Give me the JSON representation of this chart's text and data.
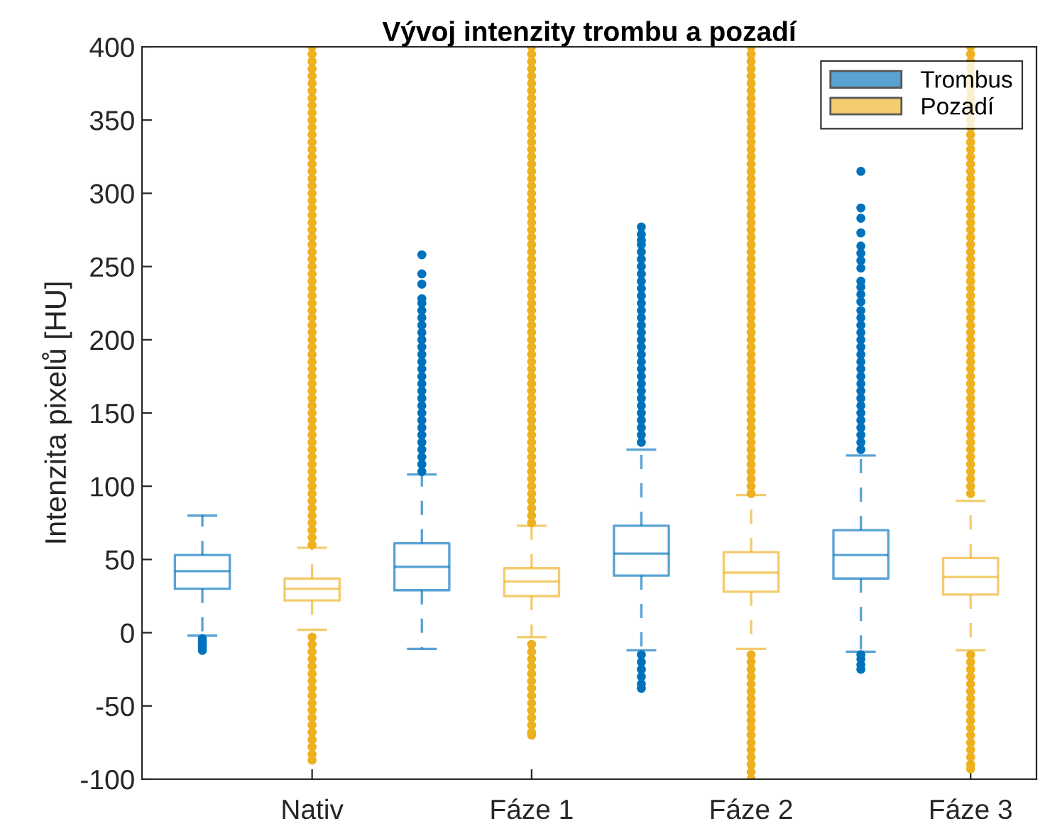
{
  "chart_data": {
    "type": "box",
    "title": "Vývoj intenzity trombu a pozadí",
    "ylabel": "Intenzita pixelů [HU]",
    "categories": [
      null,
      "Nativ",
      null,
      "Fáze 1",
      null,
      "Fáze 2",
      null,
      "Fáze 3"
    ],
    "ylim": [
      -100,
      400
    ],
    "yticks": [
      -100,
      -50,
      0,
      50,
      100,
      150,
      200,
      250,
      300,
      350,
      400
    ],
    "grid": false,
    "legend": "top right",
    "marker": "circle",
    "series": [
      {
        "name": "Trombus",
        "color": "#0072bd",
        "boxes": [
          {
            "low": -2,
            "q1": 30,
            "median": 42,
            "q3": 53,
            "high": 80,
            "outliers": [
              -4,
              -6,
              -8,
              -10,
              -12
            ]
          },
          null,
          {
            "low": -11,
            "q1": 29,
            "median": 45,
            "q3": 61,
            "high": 108,
            "outliers": [
              110,
              115,
              120,
              125,
              130,
              135,
              140,
              145,
              150,
              155,
              160,
              165,
              170,
              175,
              180,
              185,
              190,
              195,
              200,
              205,
              210,
              215,
              220,
              225,
              228,
              238,
              245,
              258
            ]
          },
          null,
          {
            "low": -12,
            "q1": 39,
            "median": 54,
            "q3": 73,
            "high": 125,
            "outliers": [
              130,
              135,
              140,
              145,
              150,
              155,
              160,
              165,
              170,
              175,
              180,
              185,
              190,
              195,
              200,
              205,
              210,
              215,
              220,
              225,
              230,
              235,
              240,
              245,
              250,
              255,
              260,
              265,
              268,
              272,
              277,
              -15,
              -20,
              -25,
              -30,
              -35,
              -38
            ]
          },
          null,
          {
            "low": -13,
            "q1": 37,
            "median": 53,
            "q3": 70,
            "high": 121,
            "outliers": [
              125,
              130,
              135,
              140,
              145,
              150,
              155,
              160,
              165,
              170,
              175,
              180,
              185,
              190,
              195,
              200,
              205,
              210,
              215,
              220,
              226,
              231,
              236,
              240,
              249,
              254,
              259,
              264,
              273,
              283,
              290,
              315,
              -15,
              -18,
              -22,
              -25
            ]
          },
          null
        ]
      },
      {
        "name": "Pozadí",
        "color": "#edb120",
        "boxes": [
          null,
          {
            "low": 2,
            "q1": 22,
            "median": 30,
            "q3": 37,
            "high": 58,
            "outliers": [
              60,
              65,
              70,
              75,
              80,
              85,
              90,
              95,
              100,
              105,
              110,
              115,
              120,
              125,
              130,
              135,
              140,
              145,
              150,
              155,
              160,
              165,
              170,
              175,
              180,
              185,
              190,
              195,
              200,
              205,
              210,
              215,
              220,
              225,
              230,
              235,
              240,
              245,
              250,
              255,
              260,
              265,
              270,
              275,
              280,
              285,
              290,
              295,
              300,
              305,
              310,
              315,
              320,
              325,
              330,
              335,
              340,
              345,
              350,
              355,
              360,
              365,
              370,
              375,
              380,
              385,
              390,
              395,
              400,
              -3,
              -8,
              -13,
              -18,
              -23,
              -28,
              -33,
              -38,
              -43,
              -48,
              -53,
              -58,
              -63,
              -68,
              -73,
              -78,
              -83,
              -87
            ]
          },
          null,
          {
            "low": -3,
            "q1": 25,
            "median": 35,
            "q3": 44,
            "high": 73,
            "outliers": [
              75,
              80,
              85,
              90,
              95,
              100,
              105,
              110,
              115,
              120,
              125,
              130,
              135,
              140,
              145,
              150,
              155,
              160,
              165,
              170,
              175,
              180,
              185,
              190,
              195,
              200,
              205,
              210,
              215,
              220,
              225,
              230,
              235,
              240,
              245,
              250,
              255,
              260,
              265,
              270,
              275,
              280,
              285,
              290,
              295,
              300,
              305,
              310,
              315,
              320,
              325,
              330,
              335,
              340,
              345,
              350,
              355,
              360,
              365,
              370,
              375,
              380,
              385,
              390,
              395,
              400,
              -8,
              -13,
              -18,
              -23,
              -28,
              -33,
              -38,
              -43,
              -48,
              -53,
              -58,
              -63,
              -68,
              -70
            ]
          },
          null,
          {
            "low": -11,
            "q1": 28,
            "median": 41,
            "q3": 55,
            "high": 94,
            "outliers": [
              95,
              100,
              105,
              110,
              115,
              120,
              125,
              130,
              135,
              140,
              145,
              150,
              155,
              160,
              165,
              170,
              175,
              180,
              185,
              190,
              195,
              200,
              205,
              210,
              215,
              220,
              225,
              230,
              235,
              240,
              245,
              250,
              255,
              260,
              265,
              270,
              275,
              280,
              285,
              290,
              295,
              300,
              305,
              310,
              315,
              320,
              325,
              330,
              335,
              340,
              345,
              350,
              355,
              360,
              365,
              370,
              375,
              380,
              385,
              390,
              395,
              400,
              -15,
              -20,
              -25,
              -30,
              -35,
              -40,
              -45,
              -50,
              -55,
              -60,
              -65,
              -70,
              -75,
              -80,
              -85,
              -90,
              -95,
              -100
            ]
          },
          null,
          {
            "low": -12,
            "q1": 26,
            "median": 38,
            "q3": 51,
            "high": 90,
            "outliers": [
              95,
              100,
              105,
              110,
              115,
              120,
              125,
              130,
              135,
              140,
              145,
              150,
              155,
              160,
              165,
              170,
              175,
              180,
              185,
              190,
              195,
              200,
              205,
              210,
              215,
              220,
              225,
              230,
              235,
              240,
              245,
              250,
              255,
              260,
              265,
              270,
              275,
              280,
              285,
              290,
              295,
              300,
              305,
              310,
              315,
              320,
              325,
              330,
              335,
              340,
              345,
              350,
              355,
              360,
              365,
              370,
              375,
              380,
              385,
              390,
              395,
              400,
              -15,
              -20,
              -25,
              -30,
              -35,
              -40,
              -45,
              -50,
              -55,
              -60,
              -65,
              -70,
              -75,
              -80,
              -85,
              -90,
              -93
            ]
          }
        ]
      }
    ]
  }
}
